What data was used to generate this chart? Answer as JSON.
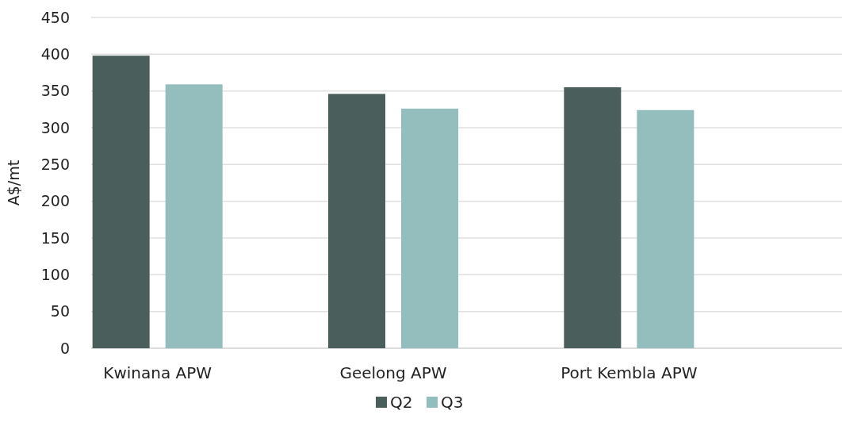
{
  "chart_data": {
    "type": "bar",
    "ylabel": "A$/mt",
    "categories": [
      "Kwinana APW",
      "Geelong APW",
      "Port Kembla APW"
    ],
    "series": [
      {
        "name": "Q2",
        "color": "#4a5e5c",
        "values": [
          398,
          346,
          355
        ]
      },
      {
        "name": "Q3",
        "color": "#94bebe",
        "values": [
          359,
          326,
          324
        ]
      }
    ],
    "ylim": [
      0,
      450
    ],
    "yticks": [
      0,
      50,
      100,
      150,
      200,
      250,
      300,
      350,
      400,
      450
    ],
    "grid": "y",
    "legend": "bottom"
  }
}
